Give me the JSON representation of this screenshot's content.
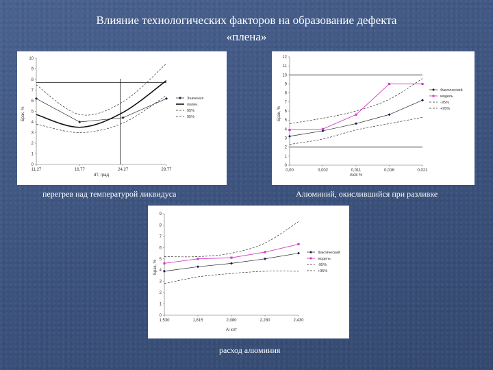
{
  "slide": {
    "title_line1": "Влияние технологических факторов на образование дефекта",
    "title_line2": "«плена»"
  },
  "captions": {
    "chart1": "перегрев над температурой ликвидуса",
    "chart2": "Алюминий, окислившийся при разливке",
    "chart3": "расход алюминия"
  },
  "chart_data": [
    {
      "type": "line",
      "xlabel": "dT, град",
      "ylabel": "Брак, %",
      "ylim": [
        0,
        10
      ],
      "yticks": [
        "0",
        "1",
        "2",
        "3",
        "4",
        "5",
        "6",
        "7",
        "8",
        "9",
        "10"
      ],
      "xticks": [
        "11,27",
        "16,77",
        "24,27",
        "29,77"
      ],
      "x": [
        11.27,
        16.77,
        24.27,
        29.77
      ],
      "legend_placement": "right",
      "series": [
        {
          "name": "Значения",
          "style": "markers-line",
          "values": [
            6.2,
            4.0,
            4.4,
            6.2
          ]
        },
        {
          "name": "полин.",
          "style": "thick",
          "values": [
            4.7,
            3.5,
            4.9,
            7.9
          ]
        },
        {
          "name": "95%",
          "style": "dashed",
          "values": [
            7.5,
            4.7,
            5.9,
            9.5
          ]
        },
        {
          "name": "95%",
          "style": "dashed",
          "values": [
            3.8,
            3.0,
            3.9,
            6.5
          ]
        }
      ]
    },
    {
      "type": "line",
      "xlabel": "Alok %",
      "ylabel": "Брак, %",
      "ylim": [
        0,
        12
      ],
      "yticks": [
        "0",
        "1",
        "2",
        "3",
        "4",
        "5",
        "6",
        "7",
        "8",
        "9",
        "10",
        "11",
        "12"
      ],
      "xticks": [
        "0,00",
        "0,002",
        "0,011",
        "0,016",
        "0,021"
      ],
      "x": [
        0.0,
        0.002,
        0.011,
        0.016,
        0.021
      ],
      "legend_placement": "right",
      "series": [
        {
          "name": "Фактический",
          "style": "markers-line",
          "values": [
            3.2,
            3.8,
            4.6,
            5.6,
            7.2
          ]
        },
        {
          "name": "модель",
          "style": "pink-markers",
          "values": [
            3.9,
            4.0,
            5.6,
            9.0,
            9.0
          ]
        },
        {
          "name": "-95%",
          "style": "dashed",
          "values": [
            2.3,
            2.9,
            3.9,
            4.6,
            5.3
          ]
        },
        {
          "name": "+95%",
          "style": "dashed",
          "values": [
            4.6,
            5.2,
            6.0,
            7.3,
            9.6
          ]
        }
      ]
    },
    {
      "type": "line",
      "xlabel": "Al кг/т",
      "ylabel": "Брак, %",
      "ylim": [
        0,
        9
      ],
      "yticks": [
        "0",
        "1",
        "2",
        "3",
        "4",
        "5",
        "6",
        "7",
        "8",
        "9"
      ],
      "xticks": [
        "1,530",
        "1,815",
        "2,080",
        "2,280",
        "2,430"
      ],
      "x": [
        1.53,
        1.815,
        2.08,
        2.28,
        2.43
      ],
      "legend_placement": "right",
      "series": [
        {
          "name": "Фактический",
          "style": "markers-line",
          "values": [
            3.9,
            4.3,
            4.6,
            5.0,
            5.5
          ]
        },
        {
          "name": "модель",
          "style": "pink-markers",
          "values": [
            4.6,
            5.0,
            5.1,
            5.6,
            6.3
          ]
        },
        {
          "name": "-95%",
          "style": "dashed",
          "values": [
            2.8,
            3.4,
            3.7,
            3.9,
            3.9
          ]
        },
        {
          "name": "+95%",
          "style": "dashed",
          "values": [
            5.2,
            5.2,
            5.5,
            6.4,
            8.3
          ]
        }
      ]
    }
  ]
}
